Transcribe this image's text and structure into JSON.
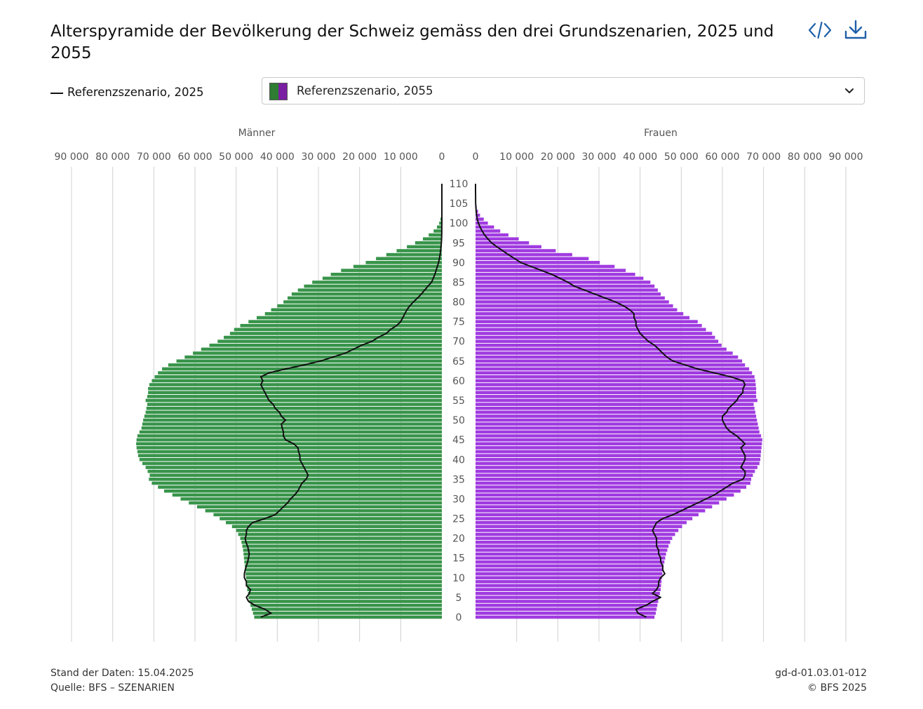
{
  "title": "Alterspyramide der Bevölkerung der Schweiz gemäss den drei Grundszenarien, 2025 und 2055",
  "toolbar": {
    "embed_icon": "code-icon",
    "download_icon": "download-icon"
  },
  "legend": {
    "line_label": "Referenzszenario, 2025"
  },
  "dropdown": {
    "selected": "Referenzszenario, 2055",
    "colors": [
      "#2e7d32",
      "#7b1fa2"
    ]
  },
  "colors": {
    "men_bars": "#38944a",
    "women_bars": "#a03be0",
    "line": "#111111",
    "grid": "#d0d0d0",
    "accent": "#1f5fa8"
  },
  "footer": {
    "stand": "Stand der Daten: 15.04.2025",
    "quelle": "Quelle: BFS – SZENARIEN",
    "code": "gd-d-01.03.01-012",
    "copyright": "© BFS 2025"
  },
  "chart_data": {
    "type": "bar",
    "orientation": "population-pyramid",
    "left_panel_label": "Männer",
    "right_panel_label": "Frauen",
    "x_ticks": [
      0,
      10000,
      20000,
      30000,
      40000,
      50000,
      60000,
      70000,
      80000,
      90000
    ],
    "x_tick_labels": [
      "0",
      "10 000",
      "20 000",
      "30 000",
      "40 000",
      "50 000",
      "60 000",
      "70 000",
      "80 000",
      "90 000"
    ],
    "xlim": [
      0,
      90000
    ],
    "y_ticks": [
      0,
      5,
      10,
      15,
      20,
      25,
      30,
      35,
      40,
      45,
      50,
      55,
      60,
      65,
      70,
      75,
      80,
      85,
      90,
      95,
      100,
      105,
      110
    ],
    "ages": [
      0,
      1,
      2,
      3,
      4,
      5,
      6,
      7,
      8,
      9,
      10,
      11,
      12,
      13,
      14,
      15,
      16,
      17,
      18,
      19,
      20,
      21,
      22,
      23,
      24,
      25,
      26,
      27,
      28,
      29,
      30,
      31,
      32,
      33,
      34,
      35,
      36,
      37,
      38,
      39,
      40,
      41,
      42,
      43,
      44,
      45,
      46,
      47,
      48,
      49,
      50,
      51,
      52,
      53,
      54,
      55,
      56,
      57,
      58,
      59,
      60,
      61,
      62,
      63,
      64,
      65,
      66,
      67,
      68,
      69,
      70,
      71,
      72,
      73,
      74,
      75,
      76,
      77,
      78,
      79,
      80,
      81,
      82,
      83,
      84,
      85,
      86,
      87,
      88,
      89,
      90,
      91,
      92,
      93,
      94,
      95,
      96,
      97,
      98,
      99,
      100,
      101,
      102,
      103,
      104,
      105,
      106,
      107,
      108,
      109,
      110
    ],
    "series": [
      {
        "name": "Männer, Referenzszenario, 2055",
        "values": [
          45600,
          45900,
          46200,
          46500,
          46800,
          47000,
          47100,
          47300,
          47400,
          47500,
          47600,
          47700,
          47800,
          47900,
          48000,
          48100,
          48200,
          48300,
          48500,
          48700,
          49000,
          49500,
          50000,
          51000,
          52500,
          54000,
          55500,
          57500,
          59500,
          61500,
          63500,
          65500,
          67500,
          69000,
          70500,
          71200,
          71000,
          71500,
          72000,
          72800,
          73500,
          73800,
          74000,
          74200,
          74300,
          74200,
          74000,
          73500,
          73000,
          72800,
          72600,
          72300,
          72000,
          71800,
          71600,
          72000,
          71600,
          71400,
          71400,
          71100,
          70500,
          69800,
          69000,
          68000,
          66500,
          64500,
          62500,
          60500,
          58500,
          56500,
          54500,
          53000,
          51500,
          50500,
          49000,
          47000,
          45000,
          43000,
          41500,
          40000,
          38500,
          37500,
          36500,
          35000,
          33500,
          31500,
          29000,
          27000,
          24500,
          21500,
          18500,
          16000,
          13500,
          11000,
          8500,
          6500,
          4600,
          3200,
          2000,
          1200,
          650,
          350,
          180,
          80,
          35,
          15,
          5,
          0,
          0,
          0,
          0
        ]
      },
      {
        "name": "Frauen, Referenzszenario, 2055",
        "values": [
          43500,
          43800,
          44000,
          44200,
          44400,
          44600,
          44800,
          45000,
          45100,
          45200,
          45300,
          45400,
          45500,
          45700,
          45900,
          46100,
          46300,
          46600,
          46900,
          47300,
          47800,
          48500,
          49300,
          50200,
          51300,
          52700,
          54200,
          55800,
          57500,
          59200,
          61000,
          62800,
          64400,
          65800,
          66800,
          67000,
          67400,
          67900,
          68500,
          69000,
          69200,
          69300,
          69400,
          69500,
          69600,
          69700,
          69400,
          69000,
          68800,
          68600,
          68400,
          68200,
          68000,
          67800,
          67600,
          68500,
          68200,
          68200,
          68200,
          68100,
          68000,
          67800,
          67200,
          66500,
          65500,
          64800,
          63800,
          62500,
          61000,
          59800,
          59000,
          58200,
          57500,
          56000,
          55000,
          54000,
          52000,
          50500,
          49000,
          48000,
          47000,
          46000,
          45000,
          44300,
          43500,
          42500,
          40800,
          38800,
          36500,
          33800,
          30200,
          27500,
          23500,
          19500,
          16000,
          13000,
          10500,
          8000,
          6000,
          4500,
          3000,
          2000,
          1100,
          600,
          300,
          150,
          70,
          30,
          10,
          5,
          0
        ]
      },
      {
        "name": "Referenzszenario, 2025 (Männer)",
        "values": [
          44000,
          41500,
          43000,
          45500,
          47000,
          47500,
          46800,
          46500,
          47500,
          47500,
          48000,
          48000,
          47800,
          47500,
          47200,
          47000,
          46800,
          47000,
          47200,
          47600,
          47800,
          47500,
          47500,
          47000,
          46000,
          43000,
          40500,
          39500,
          38500,
          37500,
          36800,
          35800,
          35000,
          34500,
          34000,
          33000,
          32500,
          33000,
          33500,
          34000,
          34500,
          34500,
          34800,
          35000,
          36000,
          38000,
          38500,
          38500,
          38800,
          39000,
          38000,
          39000,
          39500,
          40500,
          41000,
          42000,
          42500,
          43000,
          43500,
          44000,
          43500,
          44000,
          42000,
          38000,
          33500,
          29500,
          26500,
          23500,
          21500,
          19500,
          17000,
          15500,
          13500,
          12500,
          11000,
          10000,
          9500,
          9000,
          8500,
          7800,
          6900,
          5900,
          5000,
          4200,
          3400,
          2500,
          2100,
          1700,
          1400,
          1100,
          800,
          600,
          420,
          300,
          200,
          120,
          70,
          40,
          20,
          10,
          5,
          3,
          2,
          1,
          0,
          0,
          0,
          0,
          0,
          0,
          0
        ]
      },
      {
        "name": "Referenzszenario, 2025 (Frauen)",
        "values": [
          41500,
          39500,
          39000,
          41500,
          43000,
          45000,
          43000,
          44000,
          44500,
          44500,
          45000,
          46000,
          45500,
          45500,
          45000,
          45000,
          44500,
          44500,
          44000,
          44000,
          44000,
          43500,
          43000,
          43500,
          44000,
          45500,
          48000,
          50000,
          52000,
          54000,
          56000,
          58000,
          59500,
          61000,
          62500,
          65000,
          65500,
          65500,
          64500,
          65000,
          65500,
          65500,
          65000,
          64500,
          65500,
          64500,
          63500,
          62000,
          61000,
          60500,
          60000,
          60000,
          61000,
          61500,
          62500,
          63500,
          64000,
          65000,
          65000,
          65500,
          65000,
          62000,
          58000,
          54000,
          51000,
          48000,
          46500,
          45500,
          44500,
          43500,
          42000,
          41000,
          40000,
          39500,
          39000,
          39000,
          38500,
          38500,
          37500,
          36000,
          34000,
          31500,
          29000,
          26500,
          24000,
          22500,
          20500,
          18500,
          16000,
          13500,
          11000,
          9500,
          8000,
          6600,
          5200,
          3900,
          3000,
          2200,
          1600,
          1100,
          700,
          450,
          280,
          160,
          80,
          40,
          20,
          10,
          5,
          2,
          0
        ]
      }
    ]
  }
}
